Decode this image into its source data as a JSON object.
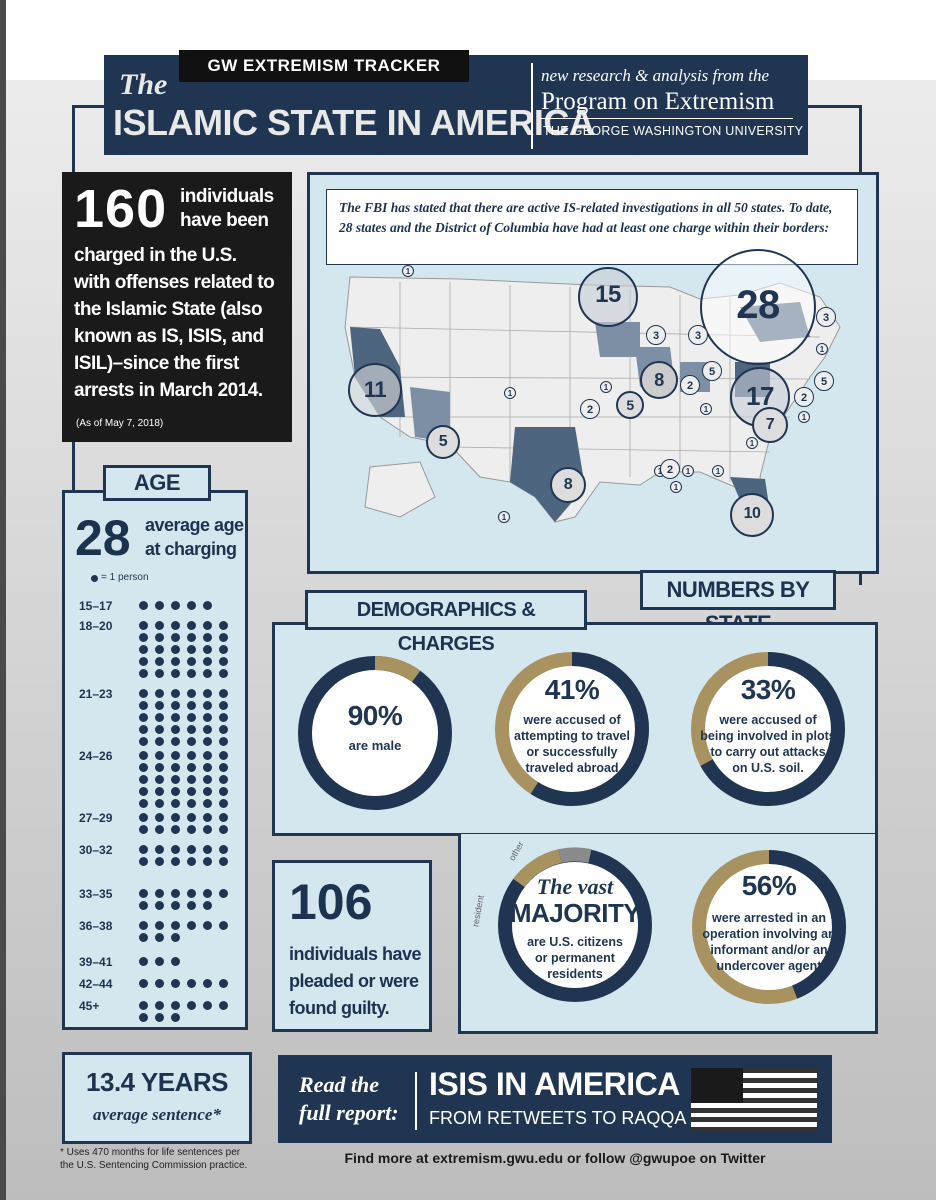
{
  "header": {
    "tracker_label": "GW EXTREMISM TRACKER",
    "the": "The",
    "title": "ISLAMIC STATE IN AMERICA",
    "tagline": "new research & analysis from the",
    "program": "Program on Extremism",
    "university": "THE GEORGE WASHINGTON UNIVERSITY"
  },
  "intro": {
    "number": "160",
    "text_a": "individuals",
    "text_b": "have been",
    "line1": "charged in the U.S.",
    "line2": "with offenses related to",
    "line3": "the Islamic State (also",
    "line4": "known as IS, ISIS, and",
    "line5": "ISIL)–since the first",
    "line6": "arrests in March 2014.",
    "asof": "(As of May 7, 2018)"
  },
  "map": {
    "caption": "The FBI has stated that there are active IS-related investigations in all 50 states. To date, 28 states and the District of Columbia have had at least one charge within their borders:",
    "section_label": "NUMBERS BY STATE",
    "big_labels": [
      "15",
      "28",
      "11",
      "8",
      "17",
      "5",
      "8",
      "7",
      "10",
      "5"
    ],
    "small_labels": [
      "1",
      "3",
      "3",
      "3",
      "1",
      "2",
      "5",
      "1",
      "5",
      "1",
      "2",
      "1",
      "2",
      "1",
      "1",
      "1",
      "1",
      "1",
      "2",
      "1",
      "1"
    ]
  },
  "age": {
    "label": "AGE",
    "avg_number": "28",
    "avg_text1": "average age",
    "avg_text2": "at charging",
    "legend": "= 1 person",
    "brackets": [
      {
        "range": "15–17",
        "count": 5
      },
      {
        "range": "18–20",
        "count": 30
      },
      {
        "range": "21–23",
        "count": 30
      },
      {
        "range": "24–26",
        "count": 30
      },
      {
        "range": "27–29",
        "count": 12
      },
      {
        "range": "30–32",
        "count": 12
      },
      {
        "range": "33–35",
        "count": 11
      },
      {
        "range": "36–38",
        "count": 9
      },
      {
        "range": "39–41",
        "count": 3
      },
      {
        "range": "42–44",
        "count": 6
      },
      {
        "range": "45+",
        "count": 9
      }
    ]
  },
  "demographics": {
    "label": "DEMOGRAPHICS & CHARGES",
    "male_pct": "90%",
    "male_text": "are male",
    "travel_pct": "41%",
    "travel_text": [
      "were accused of",
      "attempting to travel",
      "or successfully",
      "traveled abroad"
    ],
    "plots_pct": "33%",
    "plots_text": [
      "were accused of",
      "being involved in plots",
      "to carry out attacks",
      "on U.S. soil."
    ],
    "citizen_a": "The vast",
    "citizen_b": "MAJORITY",
    "citizen_text": [
      "are U.S. citizens",
      "or permanent",
      "residents"
    ],
    "citizen_other": "other",
    "citizen_resident": "resident",
    "informant_pct": "56%",
    "informant_text": [
      "were arrested in an",
      "operation involving an",
      "informant and/or an",
      "undercover agent"
    ]
  },
  "guilty": {
    "number": "106",
    "text": [
      "individuals have",
      "pleaded or were",
      "found guilty."
    ]
  },
  "sentence": {
    "value": "13.4 YEARS",
    "label": "average sentence*",
    "note1": "* Uses 470 months for life sentences per",
    "note2": "the U.S. Sentencing Commission practice."
  },
  "report": {
    "read": "Read the",
    "full": "full report:",
    "title": "ISIS IN AMERICA",
    "subtitle": "FROM RETWEETS TO RAQQA"
  },
  "footer": "Find more at extremism.gwu.edu or follow @gwupoe on Twitter",
  "colors": {
    "navy": "#1f3552",
    "gold": "#a8925f",
    "light": "#d4e6ee",
    "state_mid": "#7d8fa4",
    "state_dark": "#4e6580"
  }
}
